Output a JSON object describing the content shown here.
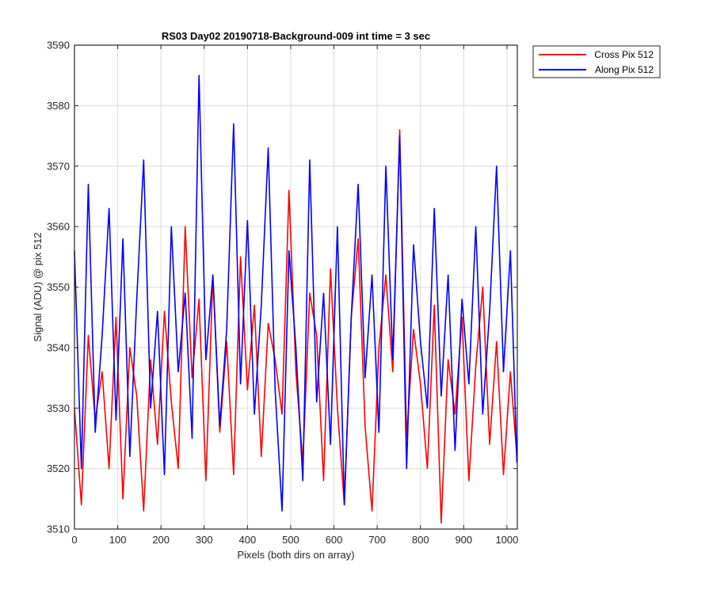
{
  "chart_data": {
    "type": "line",
    "title": "RS03 Day02 20190718-Background-009 int time = 3 sec",
    "xlabel": "Pixels (both dirs on array)",
    "ylabel": "Signal (ADU) @ pix 512",
    "xlim": [
      0,
      1024
    ],
    "ylim": [
      3510,
      3590
    ],
    "xticks": [
      0,
      100,
      200,
      300,
      400,
      500,
      600,
      700,
      800,
      900,
      1000
    ],
    "yticks": [
      3510,
      3520,
      3530,
      3540,
      3550,
      3560,
      3570,
      3580,
      3590
    ],
    "grid": true,
    "legend_location": "outside-top-right",
    "series": [
      {
        "name": "Cross Pix 512",
        "color": "#ff0000",
        "x": [
          0,
          16,
          32,
          48,
          64,
          80,
          96,
          112,
          128,
          144,
          160,
          176,
          192,
          208,
          224,
          240,
          256,
          272,
          288,
          304,
          320,
          336,
          352,
          368,
          384,
          400,
          416,
          432,
          448,
          464,
          480,
          496,
          512,
          528,
          544,
          560,
          576,
          592,
          608,
          624,
          640,
          656,
          672,
          688,
          704,
          720,
          736,
          752,
          768,
          784,
          800,
          816,
          832,
          848,
          864,
          880,
          896,
          912,
          928,
          944,
          960,
          976,
          992,
          1008,
          1023
        ],
        "y": [
          3530,
          3514,
          3542,
          3528,
          3536,
          3520,
          3545,
          3515,
          3540,
          3532,
          3513,
          3538,
          3524,
          3546,
          3531,
          3520,
          3560,
          3535,
          3548,
          3518,
          3552,
          3526,
          3541,
          3519,
          3555,
          3533,
          3547,
          3522,
          3544,
          3538,
          3529,
          3566,
          3536,
          3521,
          3549,
          3542,
          3518,
          3553,
          3530,
          3514,
          3545,
          3558,
          3527,
          3513,
          3540,
          3552,
          3536,
          3576,
          3525,
          3543,
          3534,
          3520,
          3547,
          3511,
          3538,
          3529,
          3545,
          3518,
          3537,
          3550,
          3524,
          3541,
          3519,
          3536,
          3522
        ]
      },
      {
        "name": "Along Pix 512",
        "color": "#0000ff",
        "x": [
          0,
          16,
          32,
          48,
          64,
          80,
          96,
          112,
          128,
          144,
          160,
          176,
          192,
          208,
          224,
          240,
          256,
          272,
          288,
          304,
          320,
          336,
          352,
          368,
          384,
          400,
          416,
          432,
          448,
          464,
          480,
          496,
          512,
          528,
          544,
          560,
          576,
          592,
          608,
          624,
          640,
          656,
          672,
          688,
          704,
          720,
          736,
          752,
          768,
          784,
          800,
          816,
          832,
          848,
          864,
          880,
          896,
          912,
          928,
          944,
          960,
          976,
          992,
          1008,
          1023
        ],
        "y": [
          3556,
          3520,
          3567,
          3526,
          3542,
          3563,
          3528,
          3558,
          3522,
          3548,
          3571,
          3530,
          3546,
          3519,
          3560,
          3536,
          3549,
          3525,
          3585,
          3538,
          3552,
          3527,
          3543,
          3577,
          3534,
          3561,
          3529,
          3547,
          3573,
          3533,
          3513,
          3556,
          3540,
          3518,
          3571,
          3531,
          3549,
          3524,
          3560,
          3514,
          3545,
          3567,
          3535,
          3552,
          3526,
          3570,
          3538,
          3575,
          3520,
          3557,
          3541,
          3530,
          3563,
          3532,
          3552,
          3523,
          3548,
          3534,
          3560,
          3529,
          3546,
          3570,
          3536,
          3556,
          3521
        ]
      }
    ]
  }
}
